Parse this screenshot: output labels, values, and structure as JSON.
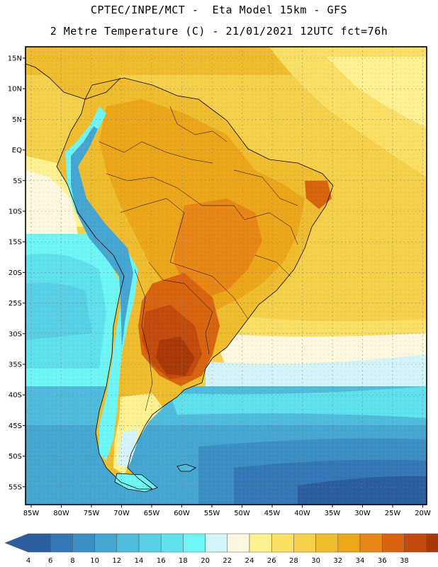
{
  "header": {
    "line1": "CPTEC/INPE/MCT -  Eta Model 15km - GFS",
    "line2": "2 Metre Temperature (C) - 21/01/2021 12UTC fct=76h"
  },
  "map": {
    "lat_labels": [
      "15N",
      "10N",
      "5N",
      "EQ",
      "5S",
      "10S",
      "15S",
      "20S",
      "25S",
      "30S",
      "35S",
      "40S",
      "45S",
      "50S",
      "55S"
    ],
    "lon_labels": [
      "85W",
      "80W",
      "75W",
      "70W",
      "65W",
      "60W",
      "55W",
      "50W",
      "45W",
      "40W",
      "35W",
      "30W",
      "25W",
      "20W"
    ]
  },
  "colorbar": {
    "labels": [
      "4",
      "6",
      "8",
      "10",
      "12",
      "14",
      "16",
      "18",
      "20",
      "22",
      "24",
      "26",
      "28",
      "30",
      "32",
      "34",
      "36",
      "38"
    ],
    "colors": [
      "#2a5e9e",
      "#3377b5",
      "#3b8fc4",
      "#45a6d2",
      "#4fbcdc",
      "#58cfe5",
      "#60e2ee",
      "#6ef6f6",
      "#d4f4fa",
      "#fdf7e0",
      "#fdf192",
      "#fbe066",
      "#f5d04a",
      "#f0bd2f",
      "#eca61a",
      "#e88716",
      "#d86410",
      "#c24a0c",
      "#a83a0a"
    ],
    "left_arrow_color": "#2a5e9e",
    "right_arrow_color": "#a83a0a"
  }
}
